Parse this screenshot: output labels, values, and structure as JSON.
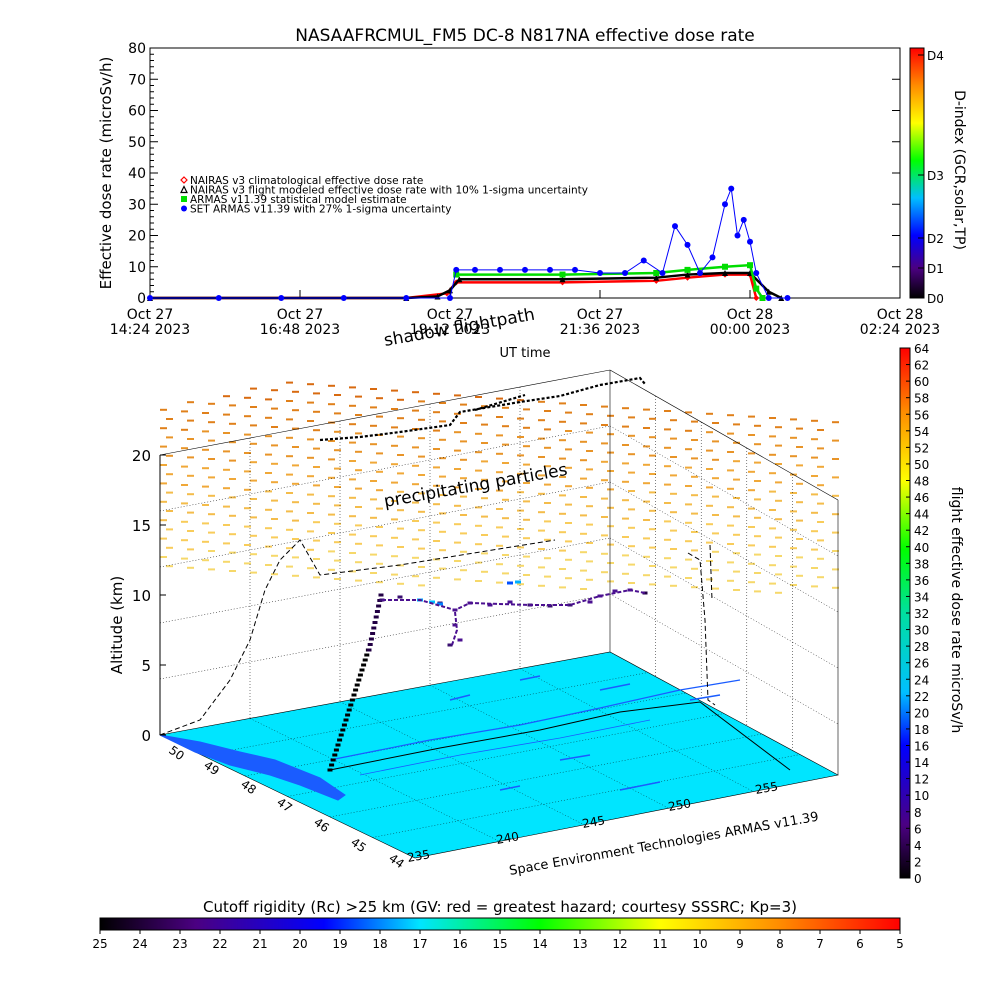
{
  "chart_data": [
    {
      "type": "scatter",
      "title": "NASAAFRCMUL_FM5 DC-8   N817NA effective dose rate",
      "xlabel": "UT time",
      "ylabel": "Effective dose rate (microSv/h)",
      "x_ticks": [
        {
          "l1": "Oct 27",
          "l2": "14:24 2023",
          "h": 14.4
        },
        {
          "l1": "Oct 27",
          "l2": "16:48 2023",
          "h": 16.8
        },
        {
          "l1": "Oct 27",
          "l2": "19:12 2023",
          "h": 19.2
        },
        {
          "l1": "Oct 27",
          "l2": "21:36 2023",
          "h": 21.6
        },
        {
          "l1": "Oct 28",
          "l2": "00:00 2023",
          "h": 24.0
        },
        {
          "l1": "Oct 28",
          "l2": "02:24 2023",
          "h": 26.4
        }
      ],
      "xlim_hours": [
        14.4,
        26.4
      ],
      "ylim": [
        0,
        80
      ],
      "y_ticks": [
        "0",
        "10",
        "20",
        "30",
        "40",
        "50",
        "60",
        "70",
        "80"
      ],
      "legend": [
        {
          "label": "NAIRAS v3 climatological effective dose rate",
          "color": "#ff0000",
          "marker": "diamond"
        },
        {
          "label": "NAIRAS v3 flight modeled effective dose rate with 10% 1-sigma uncertainty",
          "color": "#000000",
          "marker": "triangle"
        },
        {
          "label": "ARMAS v11.39 statistical model estimate",
          "color": "#00dd00",
          "marker": "square"
        },
        {
          "label": "SET ARMAS v11.39 with 27% 1-sigma uncertainty",
          "color": "#0000ff",
          "marker": "circle"
        }
      ],
      "series": [
        {
          "name": "NAIRAS v3 climatological effective dose rate",
          "color": "#ff0000",
          "x": [
            14.4,
            18.5,
            19.15,
            19.3,
            21.0,
            22.5,
            23.0,
            23.6,
            24.0,
            24.1
          ],
          "y": [
            0.0,
            0.0,
            1.5,
            5.0,
            5.0,
            5.5,
            6.5,
            7.5,
            7.5,
            0.0
          ]
        },
        {
          "name": "NAIRAS v3 flight modeled effective dose rate with 10% 1-sigma uncertainty",
          "color": "#000000",
          "x": [
            14.4,
            18.5,
            19.0,
            19.2,
            19.35,
            21.0,
            22.5,
            23.0,
            23.6,
            24.0,
            24.3,
            24.5
          ],
          "y": [
            0.0,
            0.0,
            0.5,
            2.5,
            6.0,
            6.0,
            6.5,
            7.5,
            8.0,
            8.0,
            2.0,
            0.0
          ]
        },
        {
          "name": "ARMAS v11.39 statistical model estimate",
          "color": "#00dd00",
          "x": [
            19.3,
            21.0,
            22.5,
            23.0,
            23.6,
            24.0,
            24.1,
            24.2
          ],
          "y": [
            7.5,
            7.5,
            8.0,
            9.0,
            10.0,
            10.5,
            3.0,
            0.0
          ]
        },
        {
          "name": "SET ARMAS v11.39 with 27% 1-sigma uncertainty",
          "color": "#0000ff",
          "x": [
            14.4,
            15.5,
            16.5,
            17.5,
            18.5,
            19.2,
            19.3,
            19.6,
            20.0,
            20.4,
            20.8,
            21.2,
            21.6,
            22.0,
            22.3,
            22.6,
            22.8,
            23.0,
            23.2,
            23.4,
            23.6,
            23.7,
            23.8,
            23.9,
            24.0,
            24.1,
            24.3,
            24.6
          ],
          "y": [
            0.0,
            0.0,
            0.0,
            0.0,
            0.0,
            0.0,
            9.0,
            9.0,
            9.0,
            9.0,
            9.0,
            9.0,
            8.0,
            8.0,
            12.0,
            8.0,
            23.0,
            17.0,
            8.0,
            13.0,
            30.0,
            35.0,
            20.0,
            25.0,
            18.0,
            8.0,
            0.0,
            0.0
          ]
        }
      ],
      "colorbar": {
        "label": "D-index (GCR,solar,TP)",
        "ticks": [
          "D0",
          "D1",
          "D2",
          "D3",
          "D4"
        ]
      }
    },
    {
      "type": "scatter",
      "annotations": [
        "shadow flightpath",
        "precipitating particles"
      ],
      "zlabel": "Altitude (km)",
      "z_ticks": [
        "0",
        "5",
        "10",
        "15",
        "20"
      ],
      "lon_ticks": [
        "235",
        "240",
        "245",
        "250",
        "255"
      ],
      "lat_ticks": [
        "44",
        "45",
        "46",
        "47",
        "48",
        "49",
        "50"
      ],
      "credit": "Space Environment Technologies ARMAS v11.39",
      "colorbar": {
        "label": "flight effective dose rate microSv/h",
        "range": [
          0,
          64
        ],
        "ticks": [
          "0",
          "2",
          "4",
          "6",
          "8",
          "10",
          "12",
          "14",
          "16",
          "18",
          "20",
          "22",
          "24",
          "26",
          "28",
          "30",
          "32",
          "34",
          "36",
          "38",
          "40",
          "42",
          "44",
          "46",
          "48",
          "50",
          "52",
          "54",
          "56",
          "58",
          "60",
          "62",
          "64"
        ]
      },
      "cutoff_bar": {
        "title": "Cutoff rigidity (Rc) >25 km (GV: red = greatest hazard; courtesy SSSRC; Kp=3)",
        "ticks": [
          "25",
          "24",
          "23",
          "22",
          "21",
          "20",
          "19",
          "18",
          "17",
          "16",
          "15",
          "14",
          "13",
          "12",
          "11",
          "10",
          "9",
          "8",
          "7",
          "6",
          "5"
        ]
      }
    }
  ]
}
